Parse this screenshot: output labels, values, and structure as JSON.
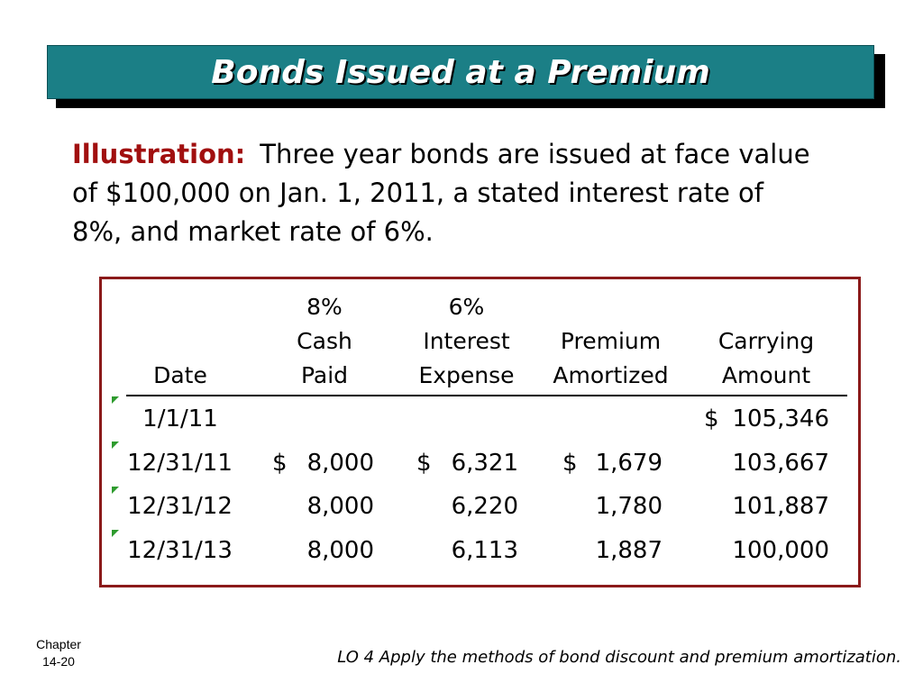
{
  "title": "Bonds Issued at a Premium",
  "illustration": {
    "label": "Illustration:",
    "line1": "Three year bonds are issued at face value",
    "line2": "of $100,000 on Jan. 1, 2011, a stated interest rate of",
    "line3": "8%, and market rate of 6%."
  },
  "table": {
    "headers": {
      "date": [
        "",
        "",
        "Date"
      ],
      "cash": [
        "8%",
        "Cash",
        "Paid"
      ],
      "interest": [
        "6%",
        "Interest",
        "Expense"
      ],
      "premium": [
        "",
        "Premium",
        "Amortized"
      ],
      "carrying": [
        "",
        "Carrying",
        "Amount"
      ]
    },
    "rows": [
      {
        "date": "1/1/11",
        "cash_sign": "",
        "cash": "",
        "int_sign": "",
        "interest": "",
        "prem_sign": "",
        "premium": "",
        "carry_sign": "$",
        "carrying": "105,346"
      },
      {
        "date": "12/31/11",
        "cash_sign": "$",
        "cash": "8,000",
        "int_sign": "$",
        "interest": "6,321",
        "prem_sign": "$",
        "premium": "1,679",
        "carry_sign": "",
        "carrying": "103,667"
      },
      {
        "date": "12/31/12",
        "cash_sign": "",
        "cash": "8,000",
        "int_sign": "",
        "interest": "6,220",
        "prem_sign": "",
        "premium": "1,780",
        "carry_sign": "",
        "carrying": "101,887"
      },
      {
        "date": "12/31/13",
        "cash_sign": "",
        "cash": "8,000",
        "int_sign": "",
        "interest": "6,113",
        "prem_sign": "",
        "premium": "1,887",
        "carry_sign": "",
        "carrying": "100,000"
      }
    ]
  },
  "footer": {
    "chapter_label": "Chapter",
    "chapter_number": "14-20",
    "learning_objective": "LO 4 Apply the methods of bond discount and premium amortization."
  },
  "colors": {
    "title_bg": "#1b7f86",
    "label_red": "#a10f0f",
    "table_border": "#8b1a1a",
    "marker_green": "#2e9b2e"
  }
}
